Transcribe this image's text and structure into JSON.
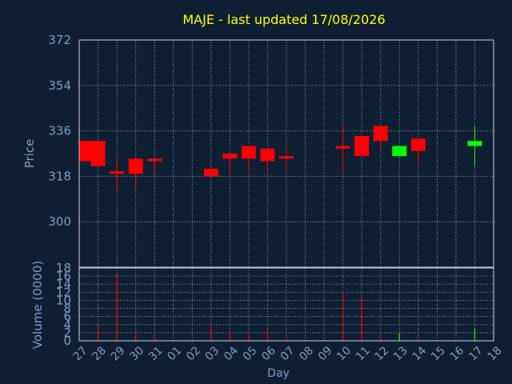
{
  "chart_data": [
    {
      "type": "candlestick",
      "title": "MAJE - last updated 17/08/2026",
      "ylabel": "Price",
      "ylim": [
        282,
        372
      ],
      "yticks": [
        300,
        318,
        336,
        354,
        372
      ],
      "grid": true,
      "categories": [
        "27",
        "28",
        "29",
        "30",
        "31",
        "01",
        "02",
        "03",
        "04",
        "05",
        "06",
        "07",
        "08",
        "09",
        "10",
        "11",
        "12",
        "13",
        "14",
        "15",
        "16",
        "17",
        "18"
      ],
      "candles": [
        {
          "day": "27",
          "open": 332,
          "high": 332,
          "low": 324,
          "close": 324
        },
        {
          "day": "28",
          "open": 332,
          "high": 332,
          "low": 322,
          "close": 322
        },
        {
          "day": "29",
          "open": 320,
          "high": 325,
          "low": 313,
          "close": 319
        },
        {
          "day": "30",
          "open": 325,
          "high": 325,
          "low": 313,
          "close": 319
        },
        {
          "day": "31",
          "open": 325,
          "high": 325,
          "low": 319,
          "close": 324
        },
        {
          "day": "03",
          "open": 321,
          "high": 321,
          "low": 318,
          "close": 318
        },
        {
          "day": "04",
          "open": 327,
          "high": 327,
          "low": 319,
          "close": 325
        },
        {
          "day": "05",
          "open": 330,
          "high": 330,
          "low": 320,
          "close": 325
        },
        {
          "day": "06",
          "open": 329,
          "high": 329,
          "low": 320,
          "close": 324
        },
        {
          "day": "07",
          "open": 326,
          "high": 330,
          "low": 321,
          "close": 325
        },
        {
          "day": "10",
          "open": 330,
          "high": 338,
          "low": 320,
          "close": 329
        },
        {
          "day": "11",
          "open": 334,
          "high": 334,
          "low": 326,
          "close": 326
        },
        {
          "day": "12",
          "open": 338,
          "high": 338,
          "low": 328,
          "close": 332
        },
        {
          "day": "13",
          "open": 326,
          "high": 330,
          "low": 326,
          "close": 330
        },
        {
          "day": "14",
          "open": 333,
          "high": 333,
          "low": 324,
          "close": 328
        },
        {
          "day": "17",
          "open": 330,
          "high": 338,
          "low": 322,
          "close": 332
        }
      ]
    },
    {
      "type": "bar",
      "ylabel": "Volume (0000)",
      "xlabel": "Day",
      "ylim": [
        0,
        18
      ],
      "yticks": [
        0,
        2,
        4,
        6,
        8,
        10,
        12,
        14,
        16,
        18
      ],
      "categories": [
        "27",
        "28",
        "29",
        "30",
        "31",
        "01",
        "02",
        "03",
        "04",
        "05",
        "06",
        "07",
        "08",
        "09",
        "10",
        "11",
        "12",
        "13",
        "14",
        "15",
        "16",
        "17",
        "18"
      ],
      "values": [
        {
          "day": "28",
          "value": 3.5,
          "direction": "down"
        },
        {
          "day": "29",
          "value": 16.5,
          "direction": "down"
        },
        {
          "day": "30",
          "value": 1.5,
          "direction": "down"
        },
        {
          "day": "31",
          "value": 1.0,
          "direction": "down"
        },
        {
          "day": "03",
          "value": 4.0,
          "direction": "down"
        },
        {
          "day": "04",
          "value": 2.0,
          "direction": "down"
        },
        {
          "day": "05",
          "value": 1.5,
          "direction": "down"
        },
        {
          "day": "06",
          "value": 3.0,
          "direction": "down"
        },
        {
          "day": "07",
          "value": 1.0,
          "direction": "down"
        },
        {
          "day": "10",
          "value": 12.0,
          "direction": "down"
        },
        {
          "day": "11",
          "value": 11.0,
          "direction": "down"
        },
        {
          "day": "12",
          "value": 1.0,
          "direction": "down"
        },
        {
          "day": "13",
          "value": 2.0,
          "direction": "up"
        },
        {
          "day": "14",
          "value": 0.5,
          "direction": "down"
        },
        {
          "day": "17",
          "value": 3.0,
          "direction": "up"
        }
      ]
    }
  ],
  "colors": {
    "background": "#0f1f33",
    "title": "#ffff00",
    "axis_text": "#7f9cc4",
    "grid": "#8a9bb0",
    "frame": "#c9d2dd",
    "up": "#00ff00",
    "down": "#ff0000"
  }
}
